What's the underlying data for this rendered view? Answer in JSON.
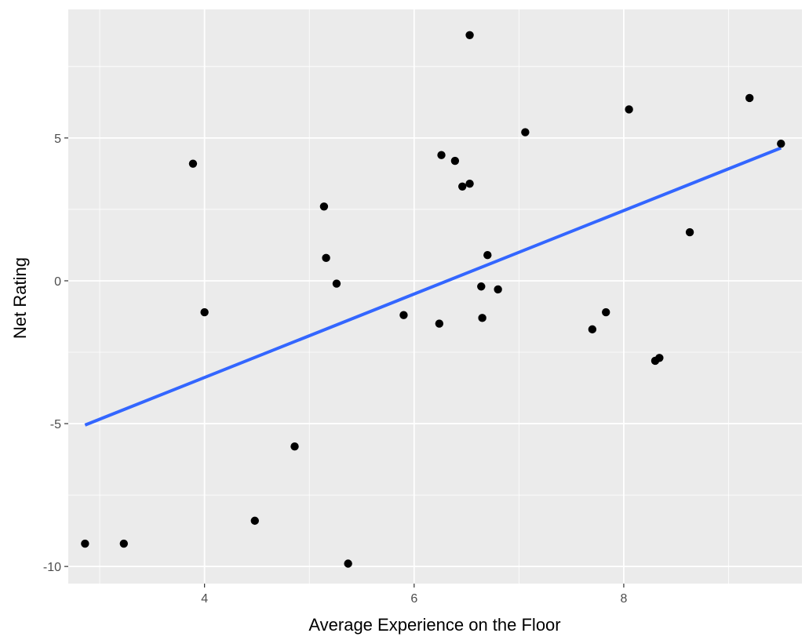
{
  "chart_data": {
    "type": "scatter",
    "title": "",
    "xlabel": "Average Experience on the Floor",
    "ylabel": "Net Rating",
    "xlim": [
      2.7,
      9.7
    ],
    "ylim": [
      -10.6,
      9.5
    ],
    "x_ticks": [
      4,
      6,
      8
    ],
    "y_ticks": [
      -10,
      -5,
      0,
      5
    ],
    "x_tick_labels": [
      "4",
      "6",
      "8"
    ],
    "y_tick_labels": [
      "-10",
      "-5",
      "0",
      "5"
    ],
    "x_minor_ticks": [
      3,
      5,
      7,
      9
    ],
    "y_minor_ticks": [
      -7.5,
      -2.5,
      2.5,
      7.5
    ],
    "grid": true,
    "legend": "none",
    "points": [
      {
        "x": 2.86,
        "y": -9.2
      },
      {
        "x": 3.23,
        "y": -9.2
      },
      {
        "x": 3.89,
        "y": 4.1
      },
      {
        "x": 4.0,
        "y": -1.1
      },
      {
        "x": 4.48,
        "y": -8.4
      },
      {
        "x": 4.86,
        "y": -5.8
      },
      {
        "x": 5.14,
        "y": 2.6
      },
      {
        "x": 5.16,
        "y": 0.8
      },
      {
        "x": 5.26,
        "y": -0.1
      },
      {
        "x": 5.37,
        "y": -9.9
      },
      {
        "x": 5.9,
        "y": -1.2
      },
      {
        "x": 6.24,
        "y": -1.5
      },
      {
        "x": 6.26,
        "y": 4.4
      },
      {
        "x": 6.39,
        "y": 4.2
      },
      {
        "x": 6.46,
        "y": 3.3
      },
      {
        "x": 6.53,
        "y": 3.4
      },
      {
        "x": 6.53,
        "y": 8.6
      },
      {
        "x": 6.64,
        "y": -0.2
      },
      {
        "x": 6.65,
        "y": -1.3
      },
      {
        "x": 6.7,
        "y": 0.9
      },
      {
        "x": 6.8,
        "y": -0.3
      },
      {
        "x": 7.06,
        "y": 5.2
      },
      {
        "x": 7.7,
        "y": -1.7
      },
      {
        "x": 7.83,
        "y": -1.1
      },
      {
        "x": 8.05,
        "y": 6.0
      },
      {
        "x": 8.3,
        "y": -2.8
      },
      {
        "x": 8.34,
        "y": -2.7
      },
      {
        "x": 8.63,
        "y": 1.7
      },
      {
        "x": 9.2,
        "y": 6.4
      },
      {
        "x": 9.5,
        "y": 4.8
      }
    ],
    "trend_line": {
      "x": [
        2.86,
        9.5
      ],
      "y": [
        -5.05,
        4.65
      ]
    },
    "colors": {
      "panel_background": "#ebebeb",
      "grid": "#ffffff",
      "points": "#000000",
      "trend_line": "#3366ff",
      "tick_text": "#4d4d4d"
    }
  }
}
